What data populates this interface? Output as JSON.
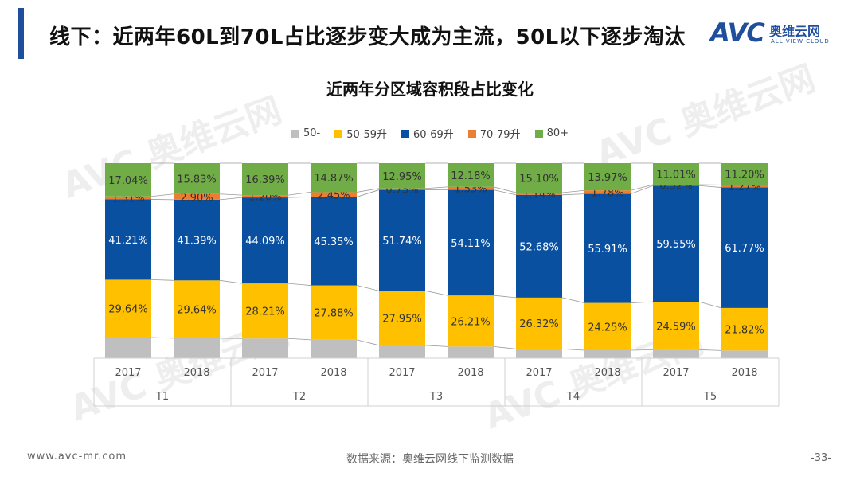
{
  "header": {
    "title": "线下：近两年60L到70L占比逐步变大成为主流，50L以下逐步淘汰",
    "logo_mark": "AVC",
    "logo_cn": "奥维云网",
    "logo_en": "ALL VIEW CLOUD"
  },
  "watermark": {
    "cn": "奥维云网",
    "en": "ALL VIEW CLOUD",
    "mark": "AVC"
  },
  "footer": {
    "website": "www.avc-mr.com",
    "source": "数据来源：奥维云网线下监测数据",
    "page": "-33-"
  },
  "chart_data": {
    "type": "bar",
    "stacked": true,
    "percent": true,
    "title": "近两年分区域容积段占比变化",
    "groups": [
      "T1",
      "T2",
      "T3",
      "T4",
      "T5"
    ],
    "categories": [
      "2017",
      "2018",
      "2017",
      "2018",
      "2017",
      "2018",
      "2017",
      "2018",
      "2017",
      "2018"
    ],
    "legend_position": "top",
    "series": [
      {
        "name": "50-",
        "color": "#bfbfbf",
        "values": [
          10.6,
          10.24,
          10.11,
          9.45,
          6.61,
          5.97,
          4.76,
          4.09,
          4.33,
          3.94
        ],
        "labels": [
          "",
          "",
          "",
          "",
          "",
          "",
          "",
          "",
          "",
          ""
        ]
      },
      {
        "name": "50-59升",
        "color": "#ffc000",
        "values": [
          29.64,
          29.64,
          28.21,
          27.88,
          27.95,
          26.21,
          26.32,
          24.25,
          24.59,
          21.82
        ],
        "labels": [
          "29.64%",
          "29.64%",
          "28.21%",
          "27.88%",
          "27.95%",
          "26.21%",
          "26.32%",
          "24.25%",
          "24.59%",
          "21.82%"
        ]
      },
      {
        "name": "60-69升",
        "color": "#0a50a1",
        "values": [
          41.21,
          41.39,
          44.09,
          45.35,
          51.74,
          54.11,
          52.68,
          55.91,
          59.55,
          61.77
        ],
        "labels": [
          "41.21%",
          "41.39%",
          "44.09%",
          "45.35%",
          "51.74%",
          "54.11%",
          "52.68%",
          "55.91%",
          "59.55%",
          "61.77%"
        ]
      },
      {
        "name": "70-79升",
        "color": "#ed7d31",
        "values": [
          1.51,
          2.9,
          1.2,
          2.45,
          0.75,
          1.53,
          1.14,
          1.78,
          0.52,
          1.27
        ],
        "labels": [
          "1.51%",
          "2.90%",
          "1.20%",
          "2.45%",
          "0.75%",
          "1.53%",
          "1.14%",
          "1.78%",
          "0.52%",
          "1.27%"
        ]
      },
      {
        "name": "80+",
        "color": "#70ad47",
        "values": [
          17.04,
          15.83,
          16.39,
          14.87,
          12.95,
          12.18,
          15.1,
          13.97,
          11.01,
          11.2
        ],
        "labels": [
          "17.04%",
          "15.83%",
          "16.39%",
          "14.87%",
          "12.95%",
          "12.18%",
          "15.10%",
          "13.97%",
          "11.01%",
          "11.20%"
        ]
      }
    ],
    "ylim": [
      0,
      100
    ]
  }
}
